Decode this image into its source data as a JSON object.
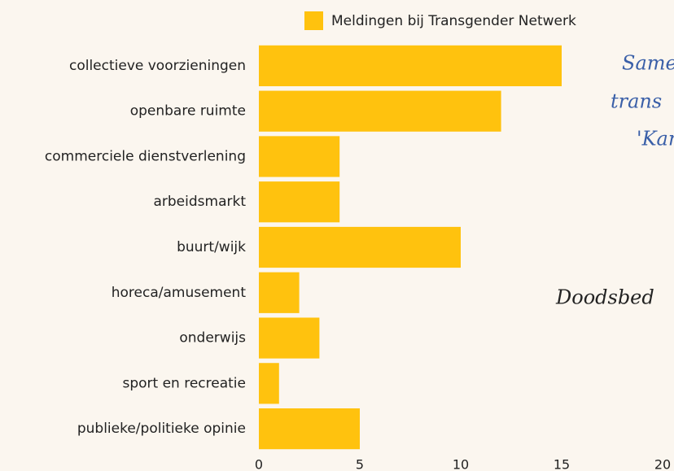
{
  "chart_data": {
    "type": "hbar",
    "categories": [
      "collectieve voorzieningen",
      "openbare ruimte",
      "commerciele dienstverlening",
      "arbeidsmarkt",
      "buurt/wijk",
      "horeca/amusement",
      "onderwijs",
      "sport en recreatie",
      "publieke/politieke opinie"
    ],
    "series": [
      {
        "name": "Meldingen bij Transgender Netwerk",
        "color": "#ffc20e",
        "values": [
          15,
          12,
          4,
          4,
          10,
          2,
          3,
          1,
          5
        ]
      }
    ],
    "xlim": [
      0,
      20
    ],
    "xticks": [
      0,
      5,
      10,
      15,
      20
    ],
    "grid": false,
    "legend": "top",
    "annotations": [
      {
        "text": "Same",
        "color": "#3a5fa8"
      },
      {
        "text": "trans",
        "color": "#3a5fa8"
      },
      {
        "text": "'Kar",
        "color": "#3a5fa8"
      },
      {
        "text": "Doodsbed",
        "color": "#222222"
      }
    ]
  }
}
